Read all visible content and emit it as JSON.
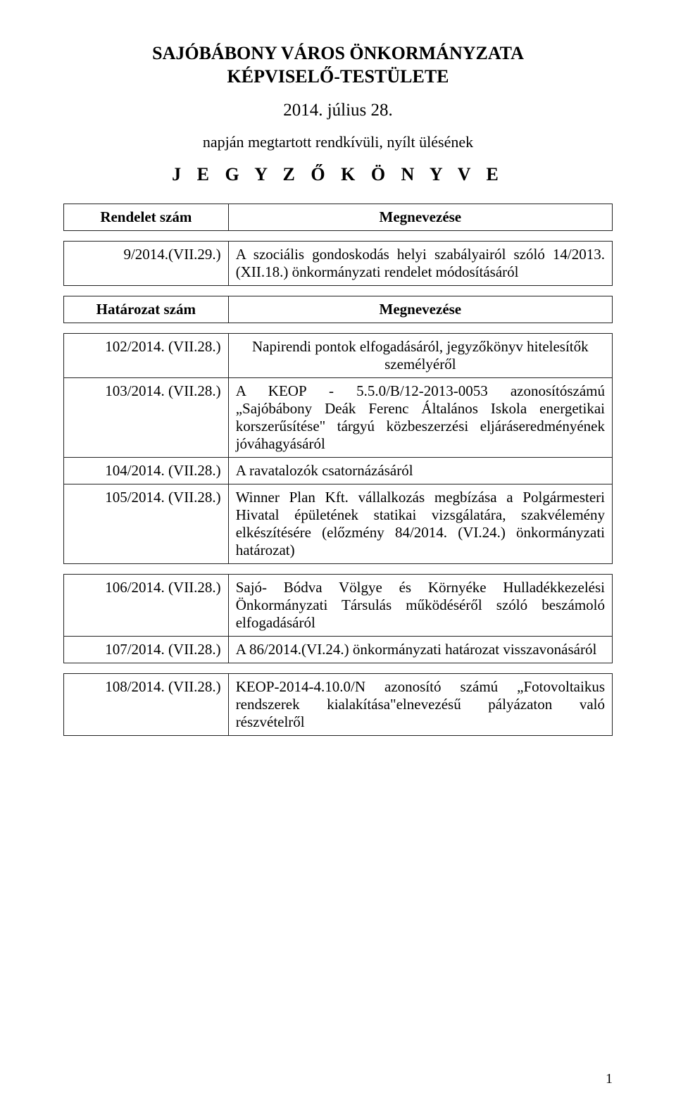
{
  "header": {
    "title_line1": "SAJÓBÁBONY VÁROS ÖNKORMÁNYZATA",
    "title_line2": "KÉPVISELŐ-TESTÜLETE",
    "date": "2014. július 28.",
    "subtitle": "napján megtartott rendkívüli, nyílt ülésének",
    "doc_name": "J E G Y Z Ő K Ö N Y V E"
  },
  "rendelet_table": {
    "header_left": "Rendelet szám",
    "header_right": "Megnevezése",
    "rows": [
      {
        "num": "9/2014.(VII.29.)",
        "text": "A szociális gondoskodás helyi szabályairól szóló 14/2013.(XII.18.) önkormányzati rendelet módosításáról"
      }
    ]
  },
  "hatarozat_header": {
    "left": "Határozat szám",
    "right": "Megnevezése"
  },
  "hatarozat_groups": [
    {
      "rows": [
        {
          "num": "102/2014. (VII.28.)",
          "text": "Napirendi pontok elfogadásáról, jegyzőkönyv hitelesítők személyéről"
        },
        {
          "num": "103/2014. (VII.28.)",
          "text": "A KEOP - 5.5.0/B/12-2013-0053 azonosítószámú „Sajóbábony Deák Ferenc Általános Iskola energetikai korszerűsítése\" tárgyú közbeszerzési eljáráseredményének jóváhagyásáról"
        },
        {
          "num": "104/2014. (VII.28.)",
          "text": "A ravatalozók csatornázásáról"
        },
        {
          "num": "105/2014. (VII.28.)",
          "text": "Winner Plan Kft. vállalkozás megbízása a Polgármesteri Hivatal épületének statikai vizsgálatára, szakvélemény elkészítésére\n(előzmény 84/2014. (VI.24.) önkormányzati határozat)"
        }
      ]
    },
    {
      "rows": [
        {
          "num": "106/2014. (VII.28.)",
          "text": "Sajó- Bódva Völgye és Környéke Hulladékkezelési Önkormányzati Társulás működéséről szóló beszámoló elfogadásáról"
        },
        {
          "num": "107/2014. (VII.28.)",
          "text": "A 86/2014.(VI.24.) önkormányzati határozat visszavonásáról"
        }
      ]
    },
    {
      "rows": [
        {
          "num": "108/2014. (VII.28.)",
          "text": "KEOP-2014-4.10.0/N azonosító számú „Fotovoltaikus rendszerek kialakítása\"elnevezésű pályázaton való részvételről"
        }
      ]
    }
  ],
  "page_number": "1"
}
